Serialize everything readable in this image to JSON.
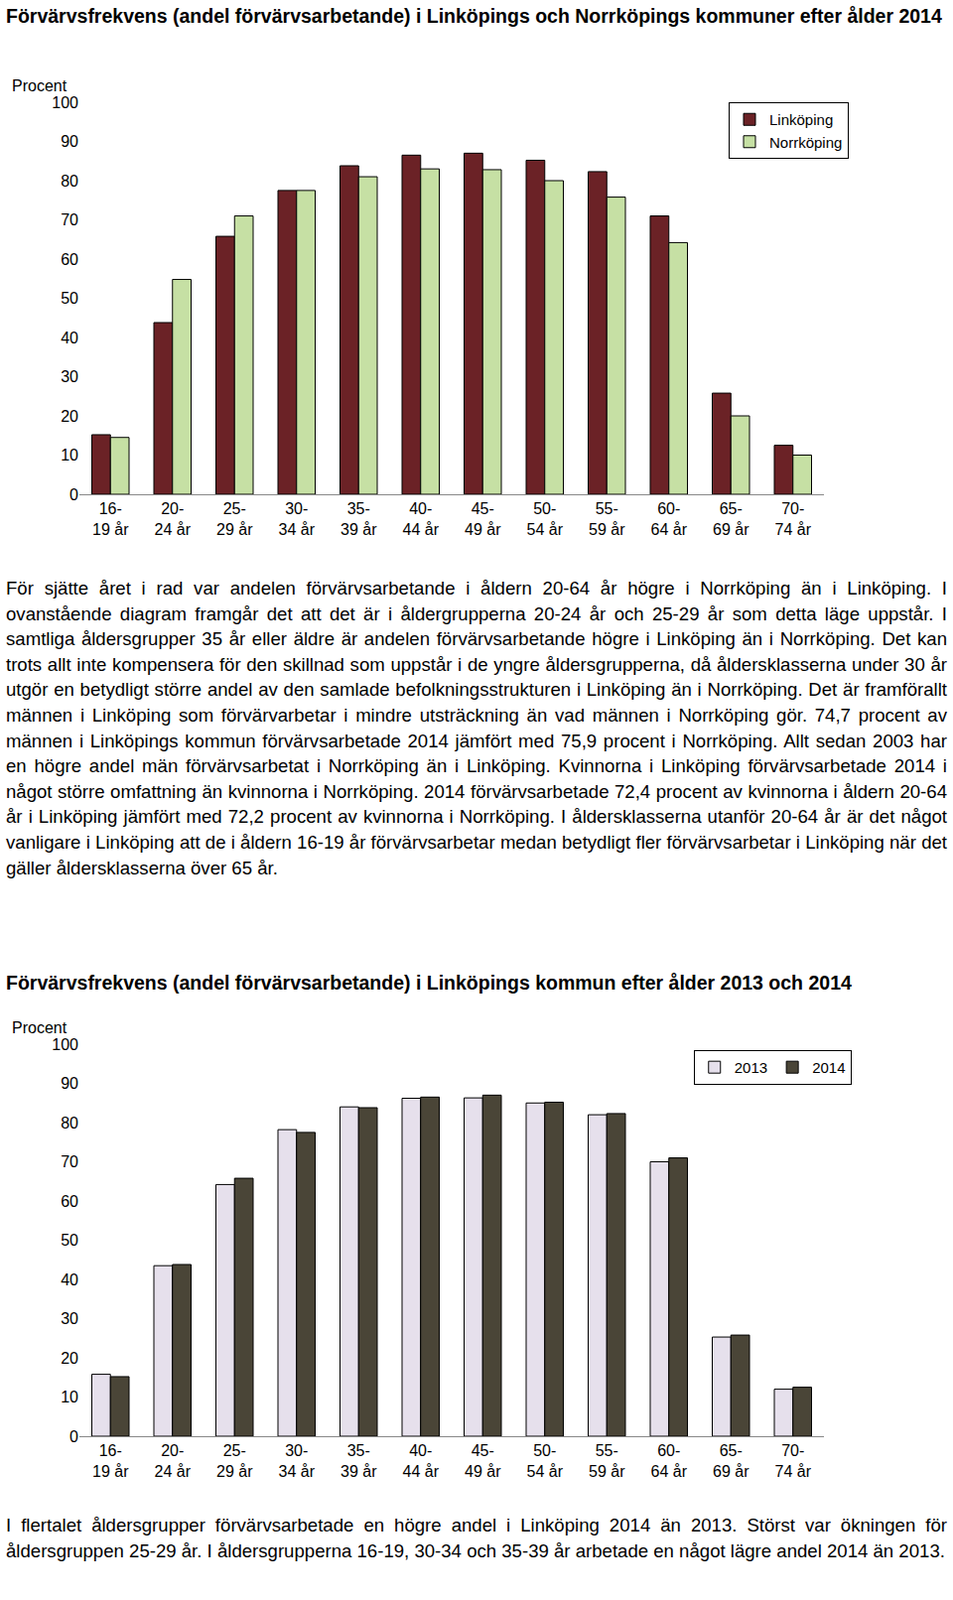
{
  "chart_data": [
    {
      "type": "bar",
      "title": "Förvärvsfrekvens (andel förvärvsarbetande) i Linköpings och Norrköpings kommuner efter ålder 2014",
      "ylabel": "Procent",
      "categories": [
        "16-19 år",
        "20-24 år",
        "25-29 år",
        "30-34 år",
        "35-39 år",
        "40-44 år",
        "45-49 år",
        "50-54 år",
        "55-59 år",
        "60-64 år",
        "65-69 år",
        "70-74 år"
      ],
      "series": [
        {
          "name": "Linköping",
          "color": "#6b2226",
          "values": [
            15.2,
            43.8,
            65.8,
            77.5,
            83.8,
            86.5,
            87.0,
            85.2,
            82.3,
            71.0,
            25.8,
            12.5
          ]
        },
        {
          "name": "Norrköping",
          "color": "#c6e0a4",
          "values": [
            14.5,
            54.8,
            71.0,
            77.5,
            81.0,
            83.0,
            82.8,
            80.0,
            75.8,
            64.2,
            20.0,
            10.0
          ]
        }
      ],
      "ylim": [
        0,
        100
      ],
      "yticks": [
        0,
        10,
        20,
        30,
        40,
        50,
        60,
        70,
        80,
        90,
        100
      ],
      "grid": false,
      "legend": "upper right"
    },
    {
      "type": "bar",
      "title": "Förvärvsfrekvens (andel förvärvsarbetande) i Linköpings kommun efter ålder 2013 och 2014",
      "ylabel": "Procent",
      "categories": [
        "16-19 år",
        "20-24 år",
        "25-29 år",
        "30-34 år",
        "35-39 år",
        "40-44 år",
        "45-49 år",
        "50-54 år",
        "55-59 år",
        "60-64 år",
        "65-69 år",
        "70-74 år"
      ],
      "series": [
        {
          "name": "2013",
          "color": "#e6e0ec",
          "values": [
            15.8,
            43.5,
            64.2,
            78.2,
            84.0,
            86.2,
            86.3,
            85.0,
            82.0,
            70.0,
            25.3,
            12.0
          ]
        },
        {
          "name": "2014",
          "color": "#4a4537",
          "values": [
            15.2,
            43.8,
            65.8,
            77.5,
            83.8,
            86.5,
            87.0,
            85.2,
            82.3,
            71.0,
            25.8,
            12.5
          ]
        }
      ],
      "ylim": [
        0,
        100
      ],
      "yticks": [
        0,
        10,
        20,
        30,
        40,
        50,
        60,
        70,
        80,
        90,
        100
      ],
      "grid": false,
      "legend": "upper right"
    }
  ],
  "paragraphs": [
    "För sjätte året i rad var andelen förvärvsarbetande i åldern 20-64 år högre i Norrköping än i Linköping. I ovanstående diagram framgår det att det är i åldergrupperna 20-24 år och 25-29 år som detta läge uppstår. I samtliga åldersgrupper 35 år eller äldre är andelen förvärvsarbetande högre i Linköping än i Norrköping. Det kan trots allt inte kompensera för den skillnad som uppstår i de yngre åldersgrupperna, då åldersklasserna under 30 år utgör en betydligt större andel av den samlade befolkningsstrukturen i Linköping än i Norrköping. Det är framförallt männen i Linköping som förvärvarbetar i mindre utsträckning än vad männen i Norrköping gör. 74,7 procent av männen i Linköpings kommun förvärvsarbetade 2014 jämfört med 75,9 procent i Norrköping. Allt sedan 2003 har en högre andel män förvärvsarbetat i Norrköping än i Linköping. Kvinnorna i Linköping förvärvsarbetade 2014 i något större omfattning än kvinnorna i Norrköping. 2014 förvärvsarbetade 72,4 procent av kvinnorna i åldern 20-64 år i Linköping jämfört med 72,2 procent av kvinnorna i Norrköping. I åldersklasserna utanför 20-64 år är det något vanligare i Linköping att de i åldern 16-19 år förvärvsarbetar medan betydligt fler förvärvsarbetar i Linköping när det gäller åldersklasserna över 65 år.",
    "I flertalet åldersgrupper förvärvsarbetade en högre andel i Linköping 2014 än 2013. Störst var ökningen för åldersgruppen 25-29 år. I åldersgrupperna 16-19, 30-34 och 35-39 år arbetade en något lägre andel 2014 än 2013."
  ]
}
